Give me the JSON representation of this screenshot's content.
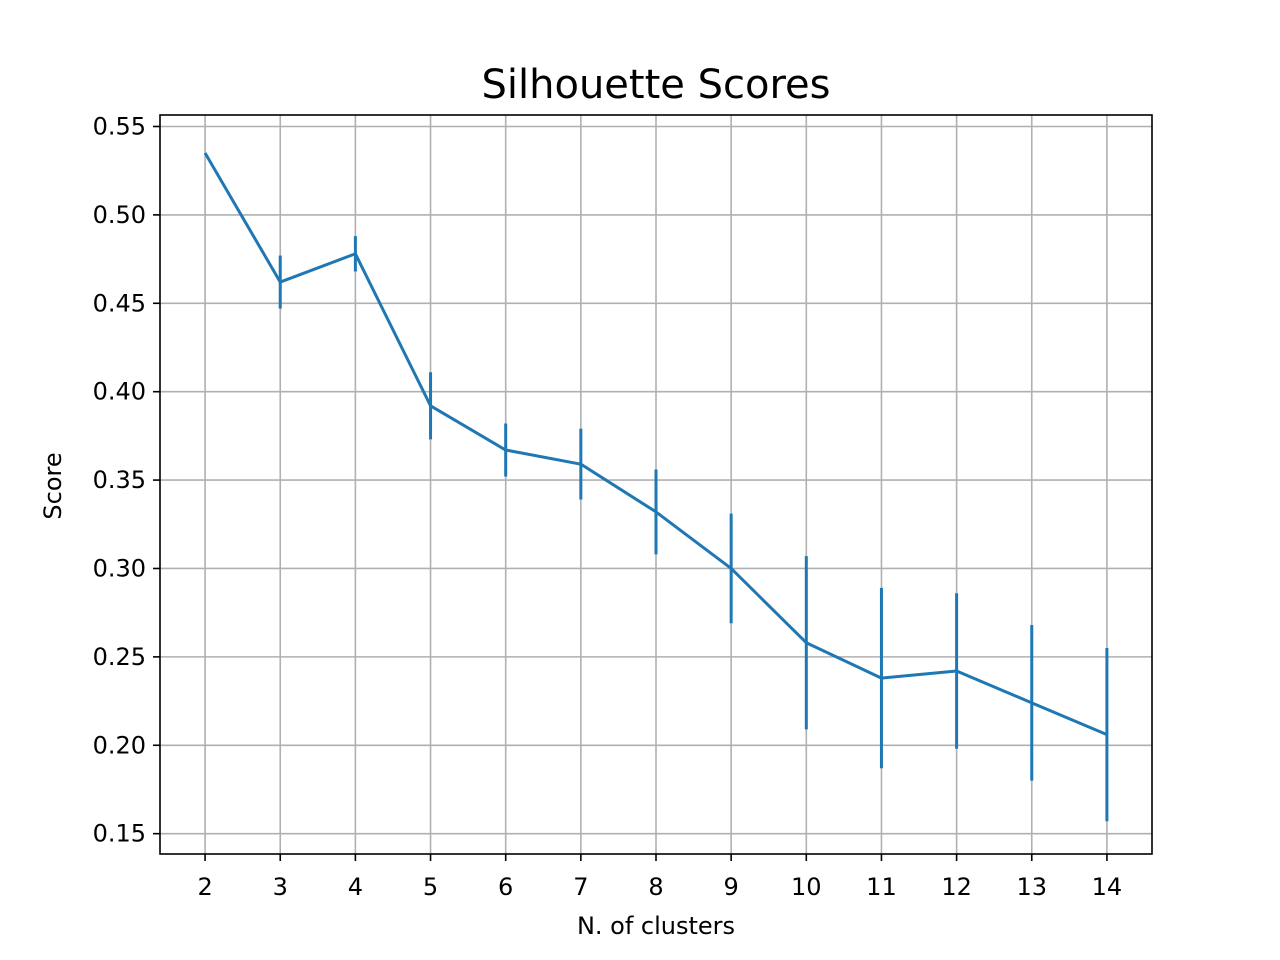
{
  "chart_data": {
    "type": "line",
    "title": "Silhouette Scores",
    "xlabel": "N. of clusters",
    "ylabel": "Score",
    "x": [
      2,
      3,
      4,
      5,
      6,
      7,
      8,
      9,
      10,
      11,
      12,
      13,
      14
    ],
    "series": [
      {
        "values": [
          0.535,
          0.462,
          0.478,
          0.392,
          0.367,
          0.359,
          0.332,
          0.3,
          0.258,
          0.238,
          0.242,
          0.224,
          0.206
        ],
        "error": [
          0.0,
          0.015,
          0.01,
          0.019,
          0.015,
          0.02,
          0.024,
          0.031,
          0.049,
          0.051,
          0.044,
          0.044,
          0.049
        ],
        "color": "#1f77b4"
      }
    ],
    "xticks": [
      "2",
      "3",
      "4",
      "5",
      "6",
      "7",
      "8",
      "9",
      "10",
      "11",
      "12",
      "13",
      "14"
    ],
    "yticks": [
      0.15,
      0.2,
      0.25,
      0.3,
      0.35,
      0.4,
      0.45,
      0.5,
      0.55
    ],
    "ytick_labels": [
      "0.15",
      "0.20",
      "0.25",
      "0.30",
      "0.35",
      "0.40",
      "0.45",
      "0.50",
      "0.55"
    ],
    "xlim": [
      1.4,
      14.6
    ],
    "ylim": [
      0.1385,
      0.5565
    ],
    "grid": true
  }
}
